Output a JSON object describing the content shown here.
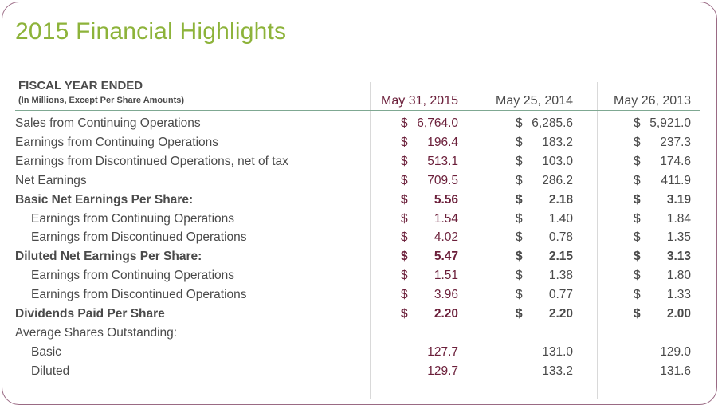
{
  "title": "2015 Financial Highlights",
  "header": {
    "fiscal_year_label": "FISCAL YEAR ENDED",
    "sub_label": "(In Millions, Except Per Share Amounts)",
    "columns": [
      "May 31, 2015",
      "May 25, 2014",
      "May 26, 2013"
    ]
  },
  "rows": [
    {
      "label": "Sales from Continuing Operations",
      "style": "normal",
      "values": [
        [
          "$",
          "6,764.0"
        ],
        [
          "$",
          "6,285.6"
        ],
        [
          "$",
          "5,921.0"
        ]
      ]
    },
    {
      "label": "Earnings from Continuing Operations",
      "style": "normal",
      "values": [
        [
          "$",
          "196.4"
        ],
        [
          "$",
          "183.2"
        ],
        [
          "$",
          "237.3"
        ]
      ]
    },
    {
      "label": "Earnings from Discontinued Operations, net of tax",
      "style": "normal",
      "values": [
        [
          "$",
          "513.1"
        ],
        [
          "$",
          "103.0"
        ],
        [
          "$",
          "174.6"
        ]
      ]
    },
    {
      "label": "Net Earnings",
      "style": "normal",
      "values": [
        [
          "$",
          "709.5"
        ],
        [
          "$",
          "286.2"
        ],
        [
          "$",
          "411.9"
        ]
      ]
    },
    {
      "label": "Basic Net Earnings Per Share:",
      "style": "bold",
      "values": [
        [
          "$",
          "5.56"
        ],
        [
          "$",
          "2.18"
        ],
        [
          "$",
          "3.19"
        ]
      ]
    },
    {
      "label": "Earnings from Continuing Operations",
      "style": "indent",
      "values": [
        [
          "$",
          "1.54"
        ],
        [
          "$",
          "1.40"
        ],
        [
          "$",
          "1.84"
        ]
      ]
    },
    {
      "label": "Earnings from Discontinued Operations",
      "style": "indent",
      "values": [
        [
          "$",
          "4.02"
        ],
        [
          "$",
          "0.78"
        ],
        [
          "$",
          "1.35"
        ]
      ]
    },
    {
      "label": "Diluted Net Earnings Per Share:",
      "style": "bold",
      "values": [
        [
          "$",
          "5.47"
        ],
        [
          "$",
          "2.15"
        ],
        [
          "$",
          "3.13"
        ]
      ]
    },
    {
      "label": "Earnings from Continuing Operations",
      "style": "indent",
      "values": [
        [
          "$",
          "1.51"
        ],
        [
          "$",
          "1.38"
        ],
        [
          "$",
          "1.80"
        ]
      ]
    },
    {
      "label": "Earnings from Discontinued Operations",
      "style": "indent",
      "values": [
        [
          "$",
          "3.96"
        ],
        [
          "$",
          "0.77"
        ],
        [
          "$",
          "1.33"
        ]
      ]
    },
    {
      "label": "Dividends Paid Per Share",
      "style": "bold",
      "values": [
        [
          "$",
          "2.20"
        ],
        [
          "$",
          "2.20"
        ],
        [
          "$",
          "2.00"
        ]
      ]
    },
    {
      "label": "Average Shares Outstanding:",
      "style": "normal",
      "values": [
        [
          "",
          ""
        ],
        [
          "",
          ""
        ],
        [
          "",
          ""
        ]
      ]
    },
    {
      "label": "Basic",
      "style": "indent",
      "values": [
        [
          "",
          "127.7"
        ],
        [
          "",
          "131.0"
        ],
        [
          "",
          "129.0"
        ]
      ]
    },
    {
      "label": "Diluted",
      "style": "indent",
      "values": [
        [
          "",
          "129.7"
        ],
        [
          "",
          "133.2"
        ],
        [
          "",
          "131.6"
        ]
      ]
    }
  ],
  "colors": {
    "title": "#8db33a",
    "current_year": "#6b1f3a",
    "text": "#4a4a4a",
    "border": "#9a6a84",
    "rule": "#7fa892"
  }
}
